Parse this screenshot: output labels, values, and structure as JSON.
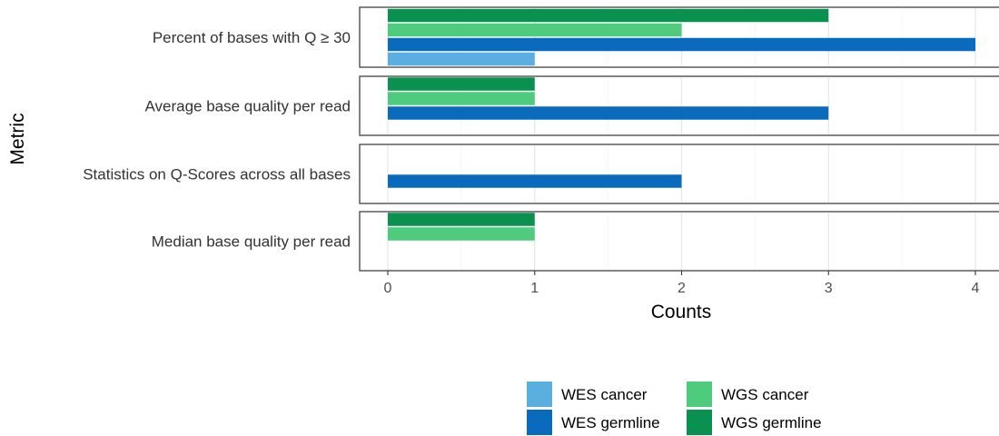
{
  "chart_data": {
    "type": "bar",
    "orientation": "horizontal",
    "faceted": true,
    "xlabel": "Counts",
    "ylabel": "Metric",
    "xlim": [
      0,
      4
    ],
    "x_ticks": [
      0,
      1,
      2,
      3,
      4
    ],
    "grid": true,
    "legend_position": "bottom",
    "series": [
      {
        "name": "WES cancer",
        "color": "#5aaee0"
      },
      {
        "name": "WES germline",
        "color": "#0a6bbd"
      },
      {
        "name": "WGS cancer",
        "color": "#4ecb7c"
      },
      {
        "name": "WGS germline",
        "color": "#0a9150"
      }
    ],
    "categories": [
      "Percent of bases with Q ≥ 30",
      "Average base quality per read",
      "Statistics on Q-Scores across all bases",
      "Median base quality per read"
    ],
    "values": {
      "Percent of bases with Q ≥ 30": {
        "WES cancer": 1,
        "WES germline": 4,
        "WGS cancer": 2,
        "WGS germline": 3
      },
      "Average base quality per read": {
        "WES germline": 3,
        "WGS cancer": 1,
        "WGS germline": 1
      },
      "Statistics on Q-Scores across all bases": {
        "WES germline": 2
      },
      "Median base quality per read": {
        "WGS cancer": 1,
        "WGS germline": 1
      }
    }
  }
}
